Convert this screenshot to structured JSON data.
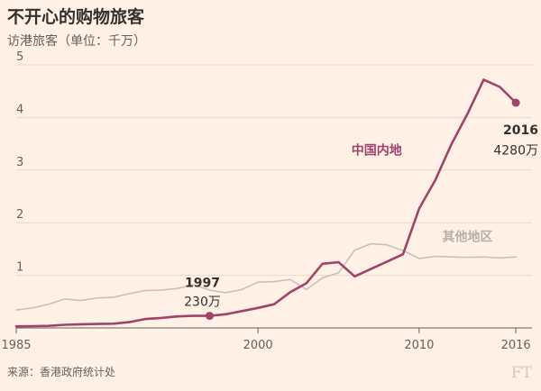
{
  "title": "不开心的购物旅客",
  "subtitle": "访港旅客（单位：千万）",
  "source": "来源：香港政府统计处",
  "logo_text": "FT",
  "colors": {
    "background": "#fff1e5",
    "mainland": "#a1426c",
    "other": "#c9c1b9",
    "grid": "#e6d9ce",
    "axis_text": "#66605c"
  },
  "chart_data": {
    "type": "line",
    "title": "不开心的购物旅客",
    "subtitle": "访港旅客（单位：千万）",
    "xlim": [
      1985,
      2017
    ],
    "ylim": [
      0,
      5
    ],
    "x_ticks": [
      1985,
      2000,
      2010,
      2016
    ],
    "y_ticks": [
      1,
      2,
      3,
      4,
      5
    ],
    "grid": true,
    "series": [
      {
        "name": "中国内地",
        "x": [
          1985,
          1986,
          1987,
          1988,
          1989,
          1990,
          1991,
          1992,
          1993,
          1994,
          1995,
          1996,
          1997,
          1998,
          1999,
          2000,
          2001,
          2002,
          2003,
          2004,
          2005,
          2006,
          2007,
          2008,
          2009,
          2010,
          2011,
          2012,
          2013,
          2014,
          2015,
          2016
        ],
        "y": [
          0.03,
          0.035,
          0.04,
          0.06,
          0.07,
          0.075,
          0.08,
          0.11,
          0.17,
          0.19,
          0.22,
          0.23,
          0.23,
          0.26,
          0.32,
          0.38,
          0.45,
          0.68,
          0.85,
          1.22,
          1.25,
          0.98,
          1.12,
          1.26,
          1.4,
          2.27,
          2.81,
          3.49,
          4.07,
          4.72,
          4.58,
          4.28
        ]
      },
      {
        "name": "其他地区",
        "x": [
          1985,
          1986,
          1987,
          1988,
          1989,
          1990,
          1991,
          1992,
          1993,
          1994,
          1995,
          1996,
          1997,
          1998,
          1999,
          2000,
          2001,
          2002,
          2003,
          2004,
          2005,
          2006,
          2007,
          2008,
          2009,
          2010,
          2011,
          2012,
          2013,
          2014,
          2015,
          2016
        ],
        "y": [
          0.34,
          0.38,
          0.45,
          0.55,
          0.52,
          0.57,
          0.58,
          0.65,
          0.71,
          0.72,
          0.75,
          0.82,
          0.72,
          0.67,
          0.73,
          0.87,
          0.88,
          0.92,
          0.73,
          0.95,
          1.05,
          1.48,
          1.6,
          1.58,
          1.47,
          1.32,
          1.36,
          1.35,
          1.34,
          1.35,
          1.33,
          1.35
        ]
      }
    ],
    "annotations": [
      {
        "year": "1997",
        "value": "230万",
        "x": 1997,
        "y": 0.23
      },
      {
        "year": "2016",
        "value": "4280万",
        "x": 2016,
        "y": 4.28
      }
    ]
  }
}
